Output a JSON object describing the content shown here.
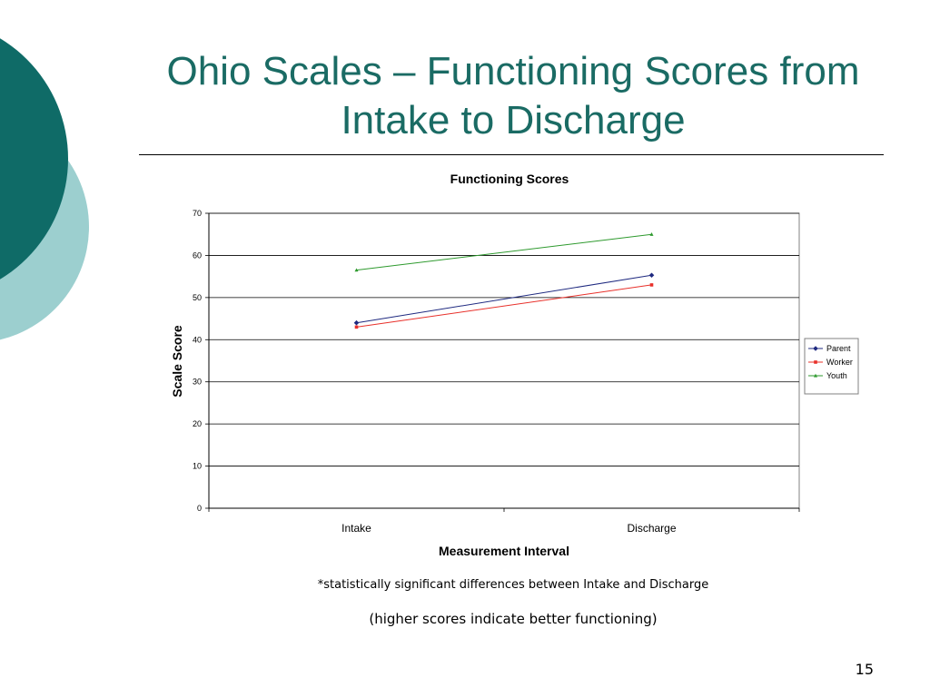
{
  "slide": {
    "title": "Ohio Scales – Functioning Scores from Intake to Discharge",
    "note_significance": "*statistically significant differences between Intake and Discharge",
    "note_direction": "(higher scores indicate better functioning)",
    "slide_number": "15",
    "colors": {
      "title": "#1a6b64",
      "circle_dark": "#0f6b67",
      "circle_light": "#9ccfcf"
    }
  },
  "chart_data": {
    "type": "line",
    "title": "Functioning Scores",
    "xlabel": "Measurement Interval",
    "ylabel": "Scale Score",
    "categories": [
      "Intake",
      "Discharge"
    ],
    "ylim": [
      0,
      70
    ],
    "yticks": [
      0,
      10,
      20,
      30,
      40,
      50,
      60,
      70
    ],
    "grid": true,
    "legend_position": "right",
    "series": [
      {
        "name": "Parent",
        "values": [
          44,
          55.3
        ],
        "color": "#1f2a80",
        "marker": "diamond"
      },
      {
        "name": "Worker",
        "values": [
          43,
          53
        ],
        "color": "#e8302a",
        "marker": "square"
      },
      {
        "name": "Youth",
        "values": [
          56.5,
          65
        ],
        "color": "#2e9a2e",
        "marker": "triangle"
      }
    ]
  }
}
